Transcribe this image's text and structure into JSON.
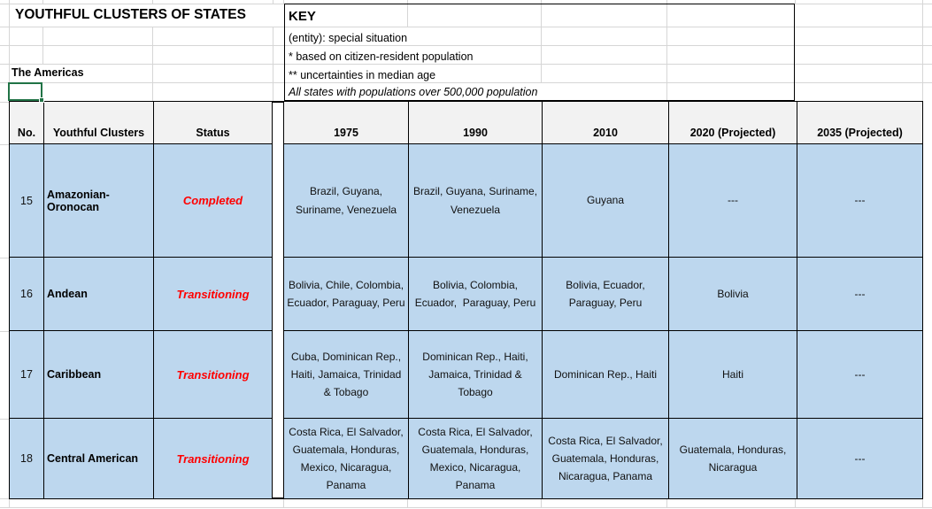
{
  "title": "YOUTHFUL CLUSTERS OF STATES",
  "region_label": "The Americas",
  "key": {
    "heading": "KEY",
    "lines": [
      "(entity): special situation",
      "* based on citizen-resident population",
      "** uncertainties in median age"
    ],
    "note": "All states with populations over 500,000 population"
  },
  "table": {
    "headers": {
      "no": "No.",
      "cluster": "Youthful Clusters",
      "status": "Status",
      "y1975": "1975",
      "y1990": "1990",
      "y2010": "2010",
      "y2020": "2020 (Projected)",
      "y2035": "2035 (Projected)"
    },
    "rows": [
      {
        "no": "15",
        "cluster": "Amazonian-Oronocan",
        "status": "Completed",
        "y1975": "Brazil, Guyana, Suriname, Venezuela",
        "y1990": "Brazil, Guyana, Suriname, Venezuela",
        "y2010": "Guyana",
        "y2020": "---",
        "y2035": "---"
      },
      {
        "no": "16",
        "cluster": "Andean",
        "status": "Transitioning",
        "y1975": "Bolivia, Chile, Colombia, Ecuador, Paraguay, Peru",
        "y1990": "Bolivia, Colombia, Ecuador,  Paraguay, Peru",
        "y2010": "Bolivia, Ecuador, Paraguay, Peru",
        "y2020": "Bolivia",
        "y2035": "---"
      },
      {
        "no": "17",
        "cluster": "Caribbean",
        "status": "Transitioning",
        "y1975": "Cuba, Dominican Rep., Haiti, Jamaica, Trinidad & Tobago",
        "y1990": "Dominican Rep., Haiti, Jamaica, Trinidad & Tobago",
        "y2010": "Dominican Rep., Haiti",
        "y2020": "Haiti",
        "y2035": "---"
      },
      {
        "no": "18",
        "cluster": "Central American",
        "status": "Transitioning",
        "y1975": "Costa Rica, El Salvador, Guatemala, Honduras, Mexico, Nicaragua, Panama",
        "y1990": "Costa Rica, El Salvador, Guatemala, Honduras, Mexico, Nicaragua, Panama",
        "y2010": "Costa Rica, El Salvador, Guatemala, Honduras, Nicaragua, Panama",
        "y2020": "Guatemala, Honduras, Nicaragua",
        "y2035": "---"
      }
    ]
  },
  "colors": {
    "row_fill": "#BDD7EE",
    "header_fill": "#F2F2F2",
    "status_text": "#FF0000",
    "selection": "#217346",
    "gridline": "#D6D6D6"
  }
}
